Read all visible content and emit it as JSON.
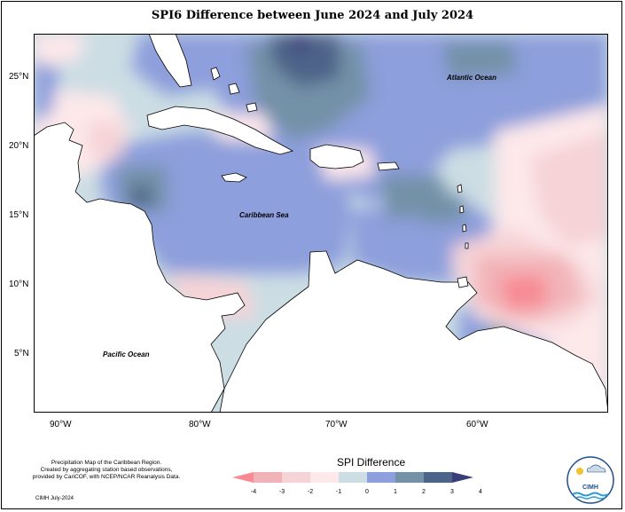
{
  "title": "SPI6 Difference between June 2024 and July 2024",
  "lat_ticks": [
    "25°N",
    "20°N",
    "15°N",
    "10°N",
    "5°N"
  ],
  "lon_ticks": [
    "90°W",
    "80°W",
    "70°W",
    "60°W"
  ],
  "labels": {
    "atlantic": "Atlantic Ocean",
    "caribbean": "Caribbean Sea",
    "pacific": "Pacific Ocean"
  },
  "legend": {
    "title": "SPI Difference",
    "ticks": [
      "-4",
      "-3",
      "-2",
      "-1",
      "0",
      "1",
      "2",
      "3",
      "4"
    ],
    "colors": [
      "#f78a92",
      "#f2b3b8",
      "#f6d3d6",
      "#fde8ea",
      "#ccdde4",
      "#8d9fdc",
      "#7391a7",
      "#4d6489",
      "#3b3d78"
    ]
  },
  "footer": {
    "line1": "Precipitation Map of the Caribbean Region.",
    "line2": "Created by aggregating station based observations,",
    "line3": "provided by CariCOF, with NCEP/NCAR Reanalysis Data.",
    "credit": "CIMH July-2024"
  },
  "logo": {
    "text": "CIMH"
  }
}
